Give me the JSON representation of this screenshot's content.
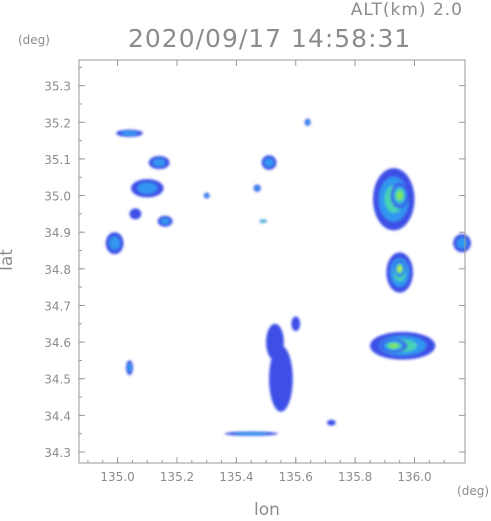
{
  "header": {
    "altitude": "ALT(km) 2.0",
    "datetime": "2020/09/17 14:58:31"
  },
  "chart_data": {
    "type": "heatmap",
    "title": "2020/09/17 14:58:31",
    "subtitle": "ALT(km) 2.0",
    "xlabel": "lon",
    "ylabel": "lat",
    "xunit": "(deg)",
    "yunit": "(deg)",
    "xlim": [
      134.87,
      136.17
    ],
    "ylim": [
      34.27,
      35.37
    ],
    "xticks": [
      "135.0",
      "135.2",
      "135.4",
      "135.6",
      "135.8",
      "136.0"
    ],
    "xtick_values": [
      135.0,
      135.2,
      135.4,
      135.6,
      135.8,
      136.0
    ],
    "yticks": [
      "34.3",
      "34.4",
      "34.5",
      "34.6",
      "34.7",
      "34.8",
      "34.9",
      "35.0",
      "35.1",
      "35.2",
      "35.3"
    ],
    "ytick_values": [
      34.3,
      34.4,
      34.5,
      34.6,
      34.7,
      34.8,
      34.9,
      35.0,
      35.1,
      35.2,
      35.3
    ],
    "grid": false,
    "colors": {
      "low": "#3c50e6",
      "mid_low": "#3296f0",
      "mid": "#46d2b4",
      "high": "#82e65a",
      "peak": "#c8f03c",
      "frame": "#999999"
    },
    "echo_cells": [
      {
        "name": "east-upper",
        "lon": 135.93,
        "lat": 34.99,
        "rlon": 0.07,
        "rlat": 0.085,
        "level": 3
      },
      {
        "name": "east-upper-core",
        "lon": 135.95,
        "lat": 35.0,
        "rlon": 0.03,
        "rlat": 0.035,
        "level": 4
      },
      {
        "name": "east-middle",
        "lon": 135.95,
        "lat": 34.79,
        "rlon": 0.045,
        "rlat": 0.055,
        "level": 3
      },
      {
        "name": "east-middle-core",
        "lon": 135.95,
        "lat": 34.8,
        "rlon": 0.018,
        "rlat": 0.022,
        "level": 5
      },
      {
        "name": "east-lower",
        "lon": 135.96,
        "lat": 34.59,
        "rlon": 0.11,
        "rlat": 0.038,
        "level": 3
      },
      {
        "name": "east-lower-core",
        "lon": 135.93,
        "lat": 34.59,
        "rlon": 0.045,
        "rlat": 0.018,
        "level": 4
      },
      {
        "name": "far-east-edge",
        "lon": 136.16,
        "lat": 34.87,
        "rlon": 0.03,
        "rlat": 0.025,
        "level": 2
      },
      {
        "name": "west-band-1",
        "lon": 134.99,
        "lat": 34.87,
        "rlon": 0.03,
        "rlat": 0.03,
        "level": 2
      },
      {
        "name": "west-band-2",
        "lon": 135.1,
        "lat": 35.02,
        "rlon": 0.055,
        "rlat": 0.025,
        "level": 2
      },
      {
        "name": "west-band-3",
        "lon": 135.16,
        "lat": 34.93,
        "rlon": 0.025,
        "rlat": 0.015,
        "level": 2
      },
      {
        "name": "west-band-4",
        "lon": 135.14,
        "lat": 35.09,
        "rlon": 0.035,
        "rlat": 0.018,
        "level": 2
      },
      {
        "name": "west-band-5",
        "lon": 135.06,
        "lat": 34.95,
        "rlon": 0.02,
        "rlat": 0.015,
        "level": 1
      },
      {
        "name": "center-north",
        "lon": 135.51,
        "lat": 35.09,
        "rlon": 0.025,
        "rlat": 0.02,
        "level": 2
      },
      {
        "name": "center-cluster",
        "lon": 135.55,
        "lat": 34.5,
        "rlon": 0.04,
        "rlat": 0.09,
        "level": 1
      },
      {
        "name": "center-cluster-2",
        "lon": 135.53,
        "lat": 34.6,
        "rlon": 0.03,
        "rlat": 0.05,
        "level": 1
      },
      {
        "name": "center-small-1",
        "lon": 135.47,
        "lat": 35.02,
        "rlon": 0.012,
        "rlat": 0.01,
        "level": 2
      },
      {
        "name": "center-small-2",
        "lon": 135.49,
        "lat": 34.93,
        "rlon": 0.012,
        "rlat": 0.005,
        "level": 3
      },
      {
        "name": "north-small",
        "lon": 135.64,
        "lat": 35.2,
        "rlon": 0.01,
        "rlat": 0.01,
        "level": 2
      },
      {
        "name": "south-spot",
        "lon": 135.04,
        "lat": 34.53,
        "rlon": 0.012,
        "rlat": 0.02,
        "level": 2
      },
      {
        "name": "south-east-spot",
        "lon": 135.72,
        "lat": 34.38,
        "rlon": 0.015,
        "rlat": 0.008,
        "level": 1
      },
      {
        "name": "south-band",
        "lon": 135.45,
        "lat": 34.35,
        "rlon": 0.09,
        "rlat": 0.006,
        "level": 2
      },
      {
        "name": "northwest-streak",
        "lon": 135.04,
        "lat": 35.17,
        "rlon": 0.045,
        "rlat": 0.01,
        "level": 2
      },
      {
        "name": "center-left",
        "lon": 135.3,
        "lat": 35.0,
        "rlon": 0.01,
        "rlat": 0.008,
        "level": 2
      },
      {
        "name": "center-mid",
        "lon": 135.6,
        "lat": 34.65,
        "rlon": 0.015,
        "rlat": 0.02,
        "level": 1
      }
    ]
  }
}
